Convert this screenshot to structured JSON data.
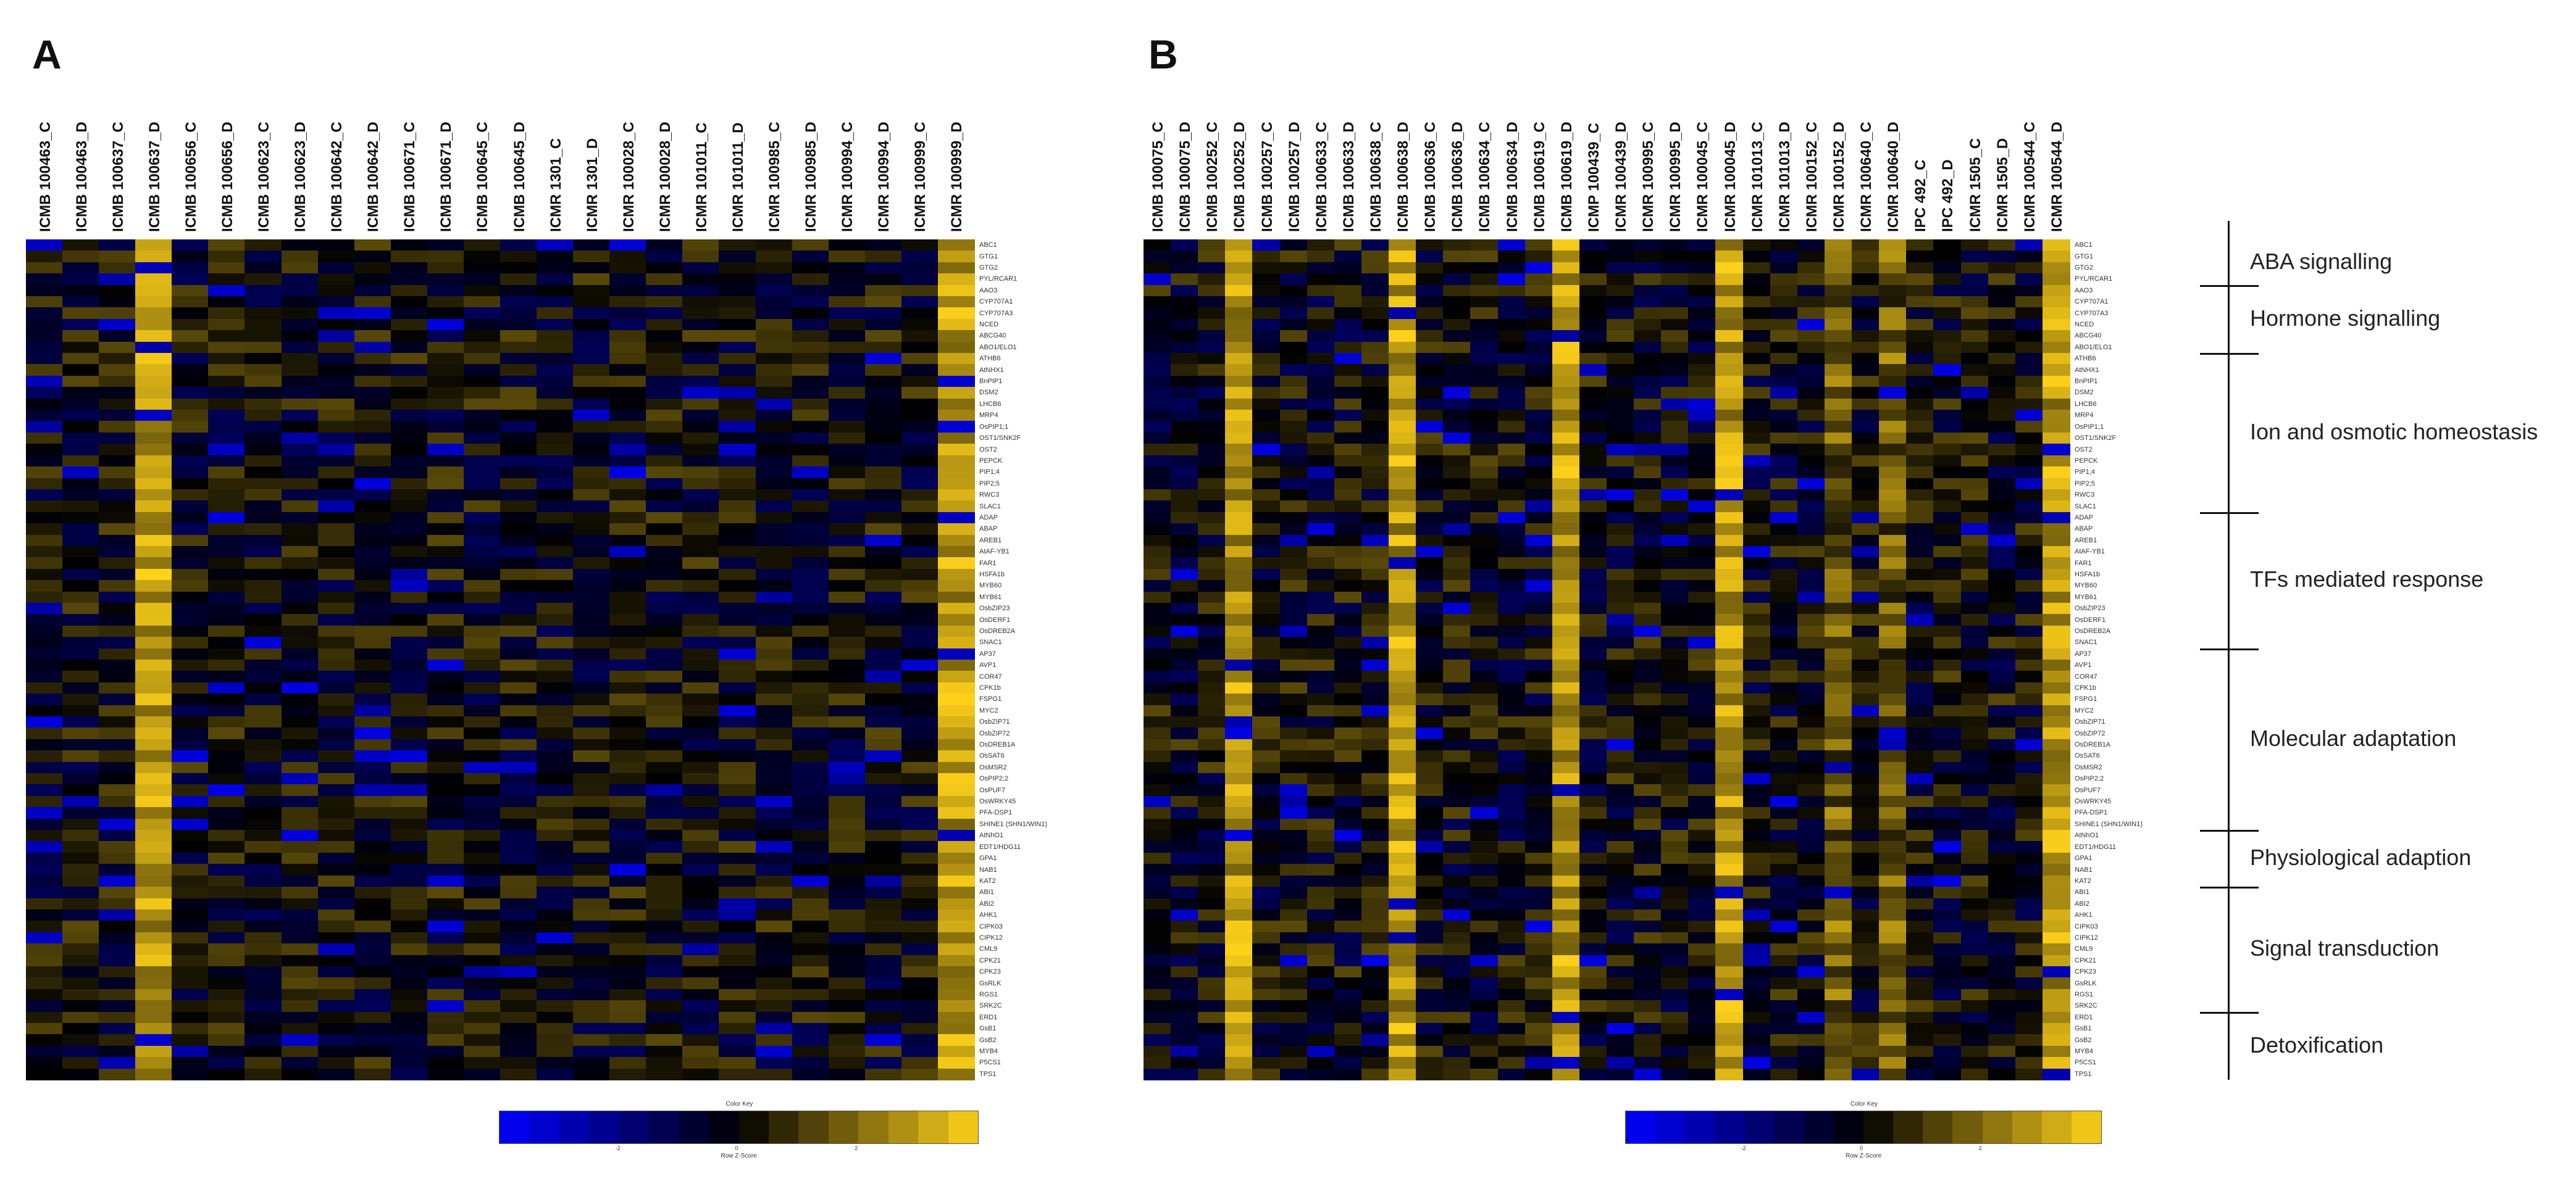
{
  "chart_data": [
    {
      "type": "heatmap",
      "panel": "A",
      "columns": [
        "ICMB 100463_C",
        "ICMB 100463_D",
        "ICMB 100637_C",
        "ICMB 100637_D",
        "ICMB 100656_C",
        "ICMB 100656_D",
        "ICMB 100623_C",
        "ICMB 100623_D",
        "ICMB 100642_C",
        "ICMB 100642_D",
        "ICMB 100671_C",
        "ICMB 100671_D",
        "ICMB 100645_C",
        "ICMB 100645_D",
        "ICMR 1301_C",
        "ICMR 1301_D",
        "ICMR 100028_C",
        "ICMR 100028_D",
        "ICMR 101011_C",
        "ICMR 101011_D",
        "ICMR 100985_C",
        "ICMR 100985_D",
        "ICMR 100994_C",
        "ICMR 100994_D",
        "ICMR 100999_C",
        "ICMR 100999_D"
      ],
      "rows": [
        "ABC1",
        "GTG1",
        "GTG2",
        "PYL/RCAR1",
        "AAO3",
        "CYP707A1",
        "CYP707A3",
        "NCED",
        "ABCG40",
        "ABO1/ELO1",
        "ATHB6",
        "AtNHX1",
        "BnPIP1",
        "DSM2",
        "LHCB6",
        "MRP4",
        "OsPIP1;1",
        "OST1/SNK2F",
        "OST2",
        "PEPCK",
        "PIP1;4",
        "PIP2;5",
        "RWC3",
        "SLAC1",
        "ADAP",
        "ABAP",
        "AREB1",
        "AtAF-YB1",
        "FAR1",
        "HSFA1b",
        "MYB60",
        "MYB61",
        "OsbZIP23",
        "OsDERF1",
        "OsDREB2A",
        "SNAC1",
        "AP37",
        "AVP1",
        "COR47",
        "CPK1b",
        "FSPG1",
        "MYC2",
        "OsbZIP71",
        "OsbZIP72",
        "OsDREB1A",
        "OsSAT6",
        "OsMSR2",
        "OsPIP2;2",
        "OsPUF7",
        "OsWRKY45",
        "PFA-DSP1",
        "SHINE1 (SHN1/WIN1)",
        "AtNhO1",
        "EDT1/HDG11",
        "GPA1",
        "NAB1",
        "KAT2",
        "ABI1",
        "ABI2",
        "AHK1",
        "CIPK03",
        "CIPK12",
        "CML9",
        "CPK21",
        "CPK23",
        "GsRLK",
        "RGS1",
        "SRK2C",
        "ERD1",
        "GsB1",
        "GsB2",
        "MYB4",
        "P5CS1",
        "TPS1"
      ],
      "color_key": {
        "title": "Color Key",
        "xlabel": "Row Z-Score",
        "ticks": [
          "-2",
          "0",
          "2"
        ],
        "low": "#0000ff",
        "mid": "#000000",
        "high": "#ffd21a"
      },
      "note": "cell values are row z-scores estimated from color; column patterns: ICMB 100637_D strongly up, ICMR 100999_D up"
    },
    {
      "type": "heatmap",
      "panel": "B",
      "columns": [
        "ICMB 100075_C",
        "ICMB 100075_D",
        "ICMB 100252_C",
        "ICMB 100252_D",
        "ICMB 100257_C",
        "ICMB 100257_D",
        "ICMB 100633_C",
        "ICMB 100633_D",
        "ICMB 100638_C",
        "ICMB 100638_D",
        "ICMB 100636_C",
        "ICMB 100636_D",
        "ICMB 100634_C",
        "ICMB 100634_D",
        "ICMB 100619_C",
        "ICMB 100619_D",
        "ICMP 100439_C",
        "ICMR 100439_D",
        "ICMR 100995_C",
        "ICMR 100995_D",
        "ICMR 100045_C",
        "ICMR 100045_D",
        "ICMR 101013_C",
        "ICMR 101013_D",
        "ICMR 100152_C",
        "ICMR 100152_D",
        "ICMR 100640_C",
        "ICMR 100640_D",
        "IPC 492_C",
        "IPC 492_D",
        "ICMR 1505_C",
        "ICMR 1505_D",
        "ICMR 100544_C",
        "ICMR 100544_D"
      ],
      "rows": [
        "ABC1",
        "GTG1",
        "GTG2",
        "PYL/RCAR1",
        "AAO3",
        "CYP707A1",
        "CYP707A3",
        "NCED",
        "ABCG40",
        "ABO1/ELO1",
        "ATHB6",
        "AtNHX1",
        "BnPIP1",
        "DSM2",
        "LHCB6",
        "MRP4",
        "OsPIP1;1",
        "OST1/SNK2F",
        "OST2",
        "PEPCK",
        "PIP1;4",
        "PIP2;5",
        "RWC3",
        "SLAC1",
        "ADAP",
        "ABAP",
        "AREB1",
        "AtAF-YB1",
        "FAR1",
        "HSFA1b",
        "MYB60",
        "MYB61",
        "OsbZIP23",
        "OsDERF1",
        "OsDREB2A",
        "SNAC1",
        "AP37",
        "AVP1",
        "COR47",
        "CPK1b",
        "FSPG1",
        "MYC2",
        "OsbZIP71",
        "OsbZIP72",
        "OsDREB1A",
        "OsSAT6",
        "OsMSR2",
        "OsPIP2;2",
        "OsPUF7",
        "OsWRKY45",
        "PFA-DSP1",
        "SHINE1 (SHN1/WIN1)",
        "AtNhO1",
        "EDT1/HDG11",
        "GPA1",
        "NAB1",
        "KAT2",
        "ABI1",
        "ABI2",
        "AHK1",
        "CIPK03",
        "CIPK12",
        "CML9",
        "CPK21",
        "CPK23",
        "GsRLK",
        "RGS1",
        "SRK2C",
        "ERD1",
        "GsB1",
        "GsB2",
        "MYB4",
        "P5CS1",
        "TPS1"
      ],
      "color_key": {
        "title": "Color Key",
        "xlabel": "Row Z-Score",
        "ticks": [
          "-2",
          "0",
          "2"
        ],
        "low": "#0000ff",
        "mid": "#000000",
        "high": "#ffd21a"
      },
      "categories": [
        {
          "label": "ABA signalling",
          "rows": [
            0,
            3
          ]
        },
        {
          "label": "Hormone signalling",
          "rows": [
            4,
            9
          ]
        },
        {
          "label": "Ion and osmotic homeostasis",
          "rows": [
            10,
            23
          ]
        },
        {
          "label": "TFs mediated response",
          "rows": [
            24,
            35
          ]
        },
        {
          "label": "Molecular adaptation",
          "rows": [
            36,
            51
          ]
        },
        {
          "label": "Physiological adaption",
          "rows": [
            52,
            56
          ]
        },
        {
          "label": "Signal transduction",
          "rows": [
            57,
            67
          ]
        },
        {
          "label": "Detoxification",
          "rows": [
            68,
            73
          ]
        }
      ]
    }
  ],
  "panels": {
    "a": "A",
    "b": "B"
  }
}
